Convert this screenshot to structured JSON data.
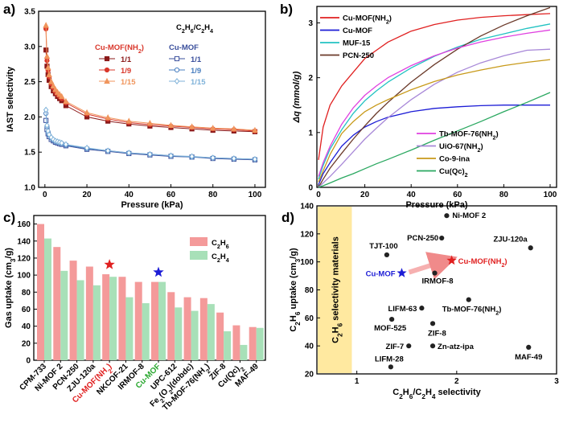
{
  "chart_data": [
    {
      "panel_label": "a)",
      "type": "line",
      "title": "C2H6/C2H4",
      "xlabel": "Pressure (kPa)",
      "ylabel": "IAST selectivity",
      "xlim": [
        0,
        100
      ],
      "ylim": [
        1.0,
        3.5
      ],
      "xticks": [
        "0",
        "20",
        "40",
        "60",
        "80",
        "100"
      ],
      "yticks": [
        "1.0",
        "1.5",
        "2.0",
        "2.5",
        "3.0",
        "3.5"
      ],
      "group_titles": [
        "Cu-MOF(NH2)",
        "Cu-MOF"
      ],
      "legend": [
        "1/1",
        "1/9",
        "1/15"
      ],
      "x": [
        0.5,
        1,
        1.5,
        2,
        3,
        4,
        5,
        6,
        7,
        8,
        10,
        20,
        30,
        40,
        50,
        60,
        70,
        80,
        90,
        100
      ],
      "series": [
        {
          "name": "1/1",
          "group": "Cu-MOF(NH2)",
          "color": "#8b1a1a",
          "marker": "square",
          "values": [
            2.95,
            2.72,
            2.6,
            2.52,
            2.43,
            2.37,
            2.33,
            2.29,
            2.26,
            2.23,
            2.16,
            2.0,
            1.94,
            1.9,
            1.87,
            1.85,
            1.83,
            1.81,
            1.8,
            1.79
          ]
        },
        {
          "name": "1/9",
          "group": "Cu-MOF(NH2)",
          "color": "#d9372b",
          "marker": "circle",
          "values": [
            3.25,
            2.8,
            2.66,
            2.57,
            2.47,
            2.41,
            2.36,
            2.32,
            2.29,
            2.26,
            2.2,
            2.04,
            1.97,
            1.92,
            1.89,
            1.87,
            1.85,
            1.83,
            1.82,
            1.8
          ]
        },
        {
          "name": "1/15",
          "group": "Cu-MOF(NH2)",
          "color": "#f0955c",
          "marker": "triangle",
          "values": [
            3.3,
            2.86,
            2.7,
            2.6,
            2.5,
            2.44,
            2.39,
            2.35,
            2.32,
            2.29,
            2.22,
            2.06,
            1.99,
            1.94,
            1.91,
            1.88,
            1.86,
            1.84,
            1.83,
            1.81
          ]
        },
        {
          "name": "1/1",
          "group": "Cu-MOF",
          "color": "#3a4f9c",
          "marker": "square-open",
          "values": [
            1.95,
            1.82,
            1.76,
            1.72,
            1.68,
            1.66,
            1.64,
            1.63,
            1.62,
            1.61,
            1.59,
            1.54,
            1.51,
            1.48,
            1.46,
            1.44,
            1.43,
            1.41,
            1.4,
            1.39
          ]
        },
        {
          "name": "1/9",
          "group": "Cu-MOF",
          "color": "#4a7fc0",
          "marker": "circle-open",
          "values": [
            2.05,
            1.86,
            1.78,
            1.74,
            1.7,
            1.67,
            1.65,
            1.64,
            1.63,
            1.62,
            1.6,
            1.55,
            1.52,
            1.49,
            1.47,
            1.45,
            1.43,
            1.42,
            1.41,
            1.4
          ]
        },
        {
          "name": "1/15",
          "group": "Cu-MOF",
          "color": "#7fb2d9",
          "marker": "diamond-open",
          "values": [
            2.1,
            1.88,
            1.8,
            1.75,
            1.71,
            1.68,
            1.66,
            1.65,
            1.64,
            1.63,
            1.61,
            1.56,
            1.52,
            1.49,
            1.47,
            1.45,
            1.44,
            1.42,
            1.41,
            1.4
          ]
        }
      ]
    },
    {
      "panel_label": "b)",
      "type": "line",
      "xlabel": "Pressure (kPa)",
      "ylabel": "Δq (mmol/g)",
      "xlim": [
        0,
        100
      ],
      "ylim": [
        0,
        3.3
      ],
      "xticks": [
        "0",
        "20",
        "40",
        "60",
        "80",
        "100"
      ],
      "yticks": [
        "0",
        "1",
        "2",
        "3"
      ],
      "x": [
        0,
        2,
        5,
        10,
        15,
        20,
        25,
        30,
        40,
        50,
        60,
        70,
        80,
        90,
        100
      ],
      "series": [
        {
          "name": "Cu-MOF(NH2)",
          "color": "#e02020",
          "values": [
            0.5,
            1.1,
            1.5,
            1.85,
            2.1,
            2.35,
            2.5,
            2.65,
            2.85,
            2.97,
            3.05,
            3.1,
            3.13,
            3.15,
            3.17
          ]
        },
        {
          "name": "Cu-MOF",
          "color": "#1c1cd6",
          "values": [
            0.05,
            0.25,
            0.45,
            0.75,
            0.95,
            1.1,
            1.2,
            1.28,
            1.38,
            1.44,
            1.47,
            1.49,
            1.5,
            1.5,
            1.5
          ]
        },
        {
          "name": "MUF-15",
          "color": "#22c2c2",
          "values": [
            0.15,
            0.4,
            0.7,
            1.05,
            1.35,
            1.58,
            1.76,
            1.92,
            2.18,
            2.39,
            2.56,
            2.7,
            2.8,
            2.9,
            2.98
          ]
        },
        {
          "name": "PCN-250",
          "color": "#6b3a2a",
          "values": [
            0.0,
            0.15,
            0.35,
            0.62,
            0.88,
            1.12,
            1.35,
            1.55,
            1.92,
            2.24,
            2.52,
            2.76,
            2.96,
            3.13,
            3.28
          ]
        },
        {
          "name": "Tb-MOF-76(NH2)",
          "color": "#e040e0",
          "values": [
            0.2,
            0.45,
            0.75,
            1.15,
            1.45,
            1.68,
            1.85,
            2.0,
            2.22,
            2.4,
            2.54,
            2.65,
            2.74,
            2.81,
            2.87
          ]
        },
        {
          "name": "UiO-67(NH2)",
          "color": "#a888d8",
          "values": [
            0.0,
            0.08,
            0.2,
            0.42,
            0.65,
            0.88,
            1.08,
            1.27,
            1.6,
            1.88,
            2.1,
            2.27,
            2.4,
            2.5,
            2.52
          ]
        },
        {
          "name": "Co-9-ina",
          "color": "#c89a1a",
          "values": [
            0.1,
            0.3,
            0.6,
            0.98,
            1.2,
            1.38,
            1.5,
            1.6,
            1.78,
            1.93,
            2.05,
            2.14,
            2.22,
            2.28,
            2.33
          ]
        },
        {
          "name": "Cu(Qc)2",
          "color": "#2aa860",
          "values": [
            0.0,
            0.03,
            0.08,
            0.17,
            0.25,
            0.34,
            0.43,
            0.51,
            0.68,
            0.86,
            1.03,
            1.2,
            1.38,
            1.55,
            1.73
          ]
        }
      ]
    },
    {
      "panel_label": "c)",
      "type": "bar",
      "ylabel": "Gas uptake (cm3/g)",
      "ylim": [
        0,
        170
      ],
      "yticks": [
        "0",
        "20",
        "40",
        "60",
        "80",
        "100",
        "120",
        "140",
        "160"
      ],
      "categories": [
        "CPM-733",
        "Ni-MOF 2",
        "PCN-250",
        "ZJU-120a",
        "Cu-MOF(NH2)",
        "NKCOF-21",
        "IRMOF-8",
        "Cu-MOF",
        "UPC-612",
        "Fe2(O2)(dobdc)",
        "Tb-MOF-76(NH2)",
        "ZIF-8",
        "Cu(Qc)2",
        "MAF-49"
      ],
      "highlight_colors": {
        "Cu-MOF(NH2)": "#e02020",
        "Cu-MOF": "#2aa830"
      },
      "series": [
        {
          "name": "C2H6",
          "color": "#f49a9a",
          "values": [
            160,
            133,
            117,
            110,
            101,
            98,
            92,
            92,
            80,
            74,
            73,
            56,
            41,
            39
          ]
        },
        {
          "name": "C2H4",
          "color": "#a8e0b8",
          "values": [
            143,
            105,
            94,
            88,
            98,
            74,
            67,
            92,
            62,
            58,
            66,
            34,
            18,
            38
          ]
        }
      ],
      "star_markers": [
        {
          "category": "Cu-MOF(NH2)",
          "color": "#e02020"
        },
        {
          "category": "Cu-MOF",
          "color": "#1c1cd6"
        }
      ]
    },
    {
      "panel_label": "d)",
      "type": "scatter",
      "xlabel": "C2H6/C2H4 selectivity",
      "ylabel": "C2H6 uptake (cm3/g)",
      "xlim": [
        0.6,
        3.0
      ],
      "ylim": [
        20,
        140
      ],
      "xticks": [
        "1",
        "2",
        "3"
      ],
      "yticks": [
        "20",
        "40",
        "60",
        "80",
        "100",
        "120",
        "140"
      ],
      "band_label": "C2H6 selectivity materials",
      "points": [
        {
          "name": "Ni-MOF 2",
          "x": 1.9,
          "y": 133
        },
        {
          "name": "PCN-250",
          "x": 1.85,
          "y": 117
        },
        {
          "name": "ZJU-120a",
          "x": 2.74,
          "y": 110
        },
        {
          "name": "TJT-100",
          "x": 1.3,
          "y": 105
        },
        {
          "name": "Cu-MOF(NH2)",
          "x": 1.95,
          "y": 101,
          "marker": "star",
          "color": "#e02020"
        },
        {
          "name": "Cu-MOF",
          "x": 1.45,
          "y": 92,
          "marker": "star",
          "color": "#1c1cd6"
        },
        {
          "name": "IRMOF-8",
          "x": 1.78,
          "y": 92
        },
        {
          "name": "Tb-MOF-76(NH2)",
          "x": 2.12,
          "y": 73
        },
        {
          "name": "LIFM-63",
          "x": 1.65,
          "y": 67
        },
        {
          "name": "MOF-525",
          "x": 1.35,
          "y": 59
        },
        {
          "name": "ZIF-8",
          "x": 1.76,
          "y": 56
        },
        {
          "name": "ZIF-7",
          "x": 1.52,
          "y": 40
        },
        {
          "name": "Zn-atz-ipa",
          "x": 1.76,
          "y": 40
        },
        {
          "name": "MAF-49",
          "x": 2.72,
          "y": 39
        },
        {
          "name": "LIFM-28",
          "x": 1.34,
          "y": 25
        }
      ]
    }
  ]
}
